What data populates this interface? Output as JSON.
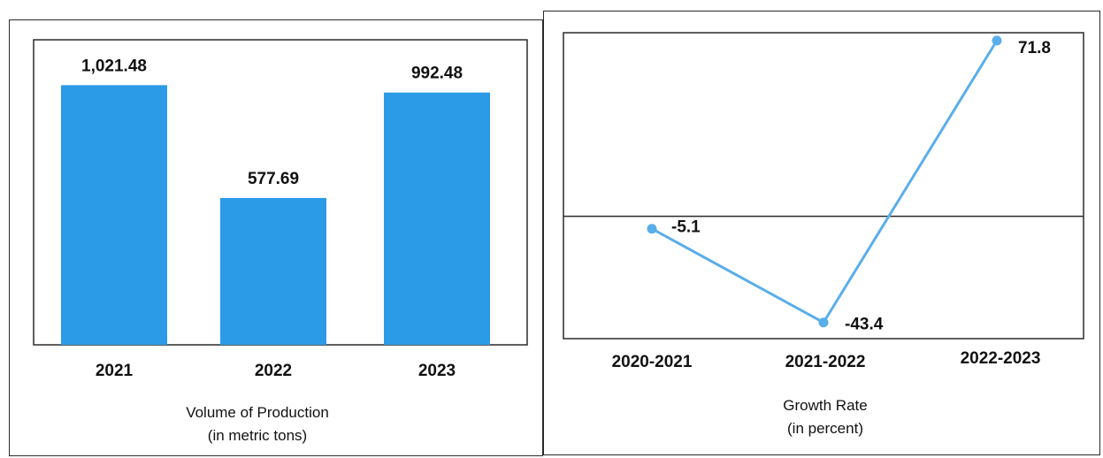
{
  "chart_data": [
    {
      "type": "bar",
      "categories": [
        "2021",
        "2022",
        "2023"
      ],
      "values": [
        1021.48,
        577.69,
        992.48
      ],
      "value_labels": [
        "1,021.48",
        "577.69",
        "992.48"
      ],
      "title": "",
      "xlabel": "",
      "ylabel": "",
      "caption_line1": "Volume of Production",
      "caption_line2": "(in metric tons)",
      "ylim": [
        0,
        1200
      ],
      "grid": false,
      "bar_color": "#2b9be8"
    },
    {
      "type": "line",
      "categories": [
        "2020-2021",
        "2021-2022",
        "2022-2023"
      ],
      "values": [
        -5.1,
        -43.4,
        71.8
      ],
      "value_labels": [
        "-5.1",
        "-43.4",
        "71.8"
      ],
      "title": "",
      "xlabel": "",
      "ylabel": "",
      "caption_line1": "Growth Rate",
      "caption_line2": "(in percent)",
      "ylim": [
        -50,
        75
      ],
      "grid": false,
      "line_color": "#5aaeea"
    }
  ]
}
